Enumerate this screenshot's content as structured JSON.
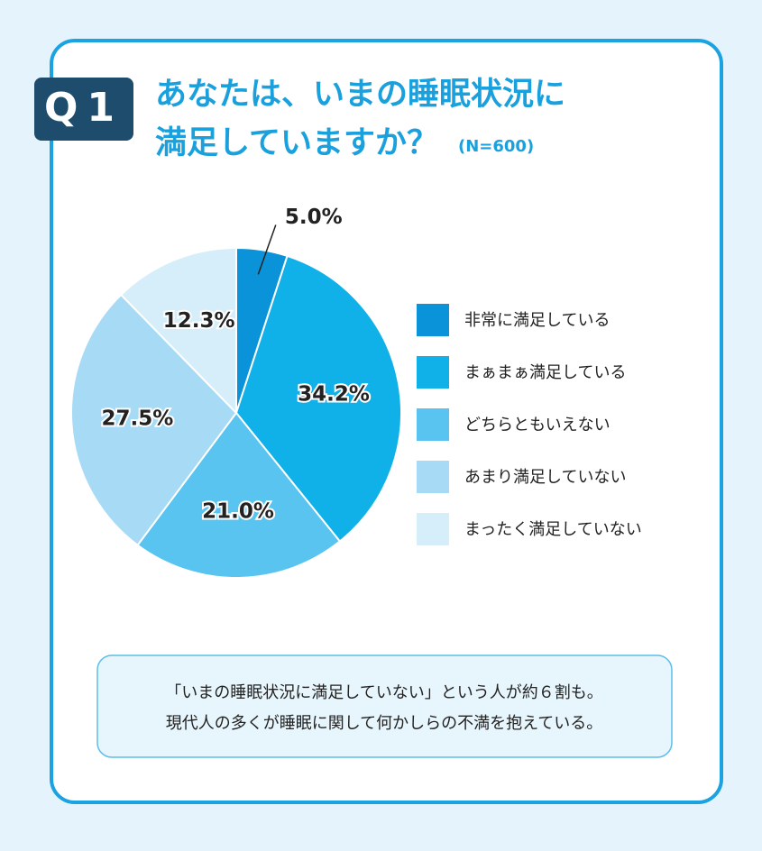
{
  "badge": "Q1",
  "chart_data": {
    "type": "pie",
    "title_lines": [
      "あなたは、いまの睡眠状況に",
      "満足していますか？"
    ],
    "subtitle": "(N=600)",
    "categories": [
      "非常に満足している",
      "まぁまぁ満足している",
      "どちらともいえない",
      "あまり満足していない",
      "まったく満足していない"
    ],
    "values": [
      5.0,
      34.2,
      21.0,
      27.5,
      12.3
    ],
    "value_labels": [
      "5.0%",
      "34.2%",
      "21.0%",
      "27.5%",
      "12.3%"
    ],
    "colors": [
      "#0a93d8",
      "#10b0e8",
      "#58c4ef",
      "#a7daf5",
      "#d6edfa"
    ],
    "legend": "right"
  },
  "note_lines": [
    "「いまの睡眠状況に満足していない」という人が約６割も。",
    "現代人の多くが睡眠に関して何かしらの不満を抱えている。"
  ]
}
